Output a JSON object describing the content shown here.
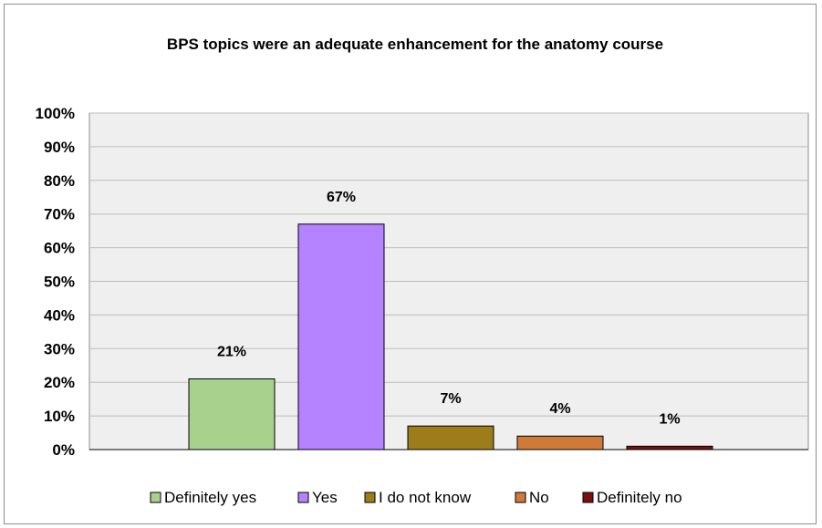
{
  "chart_data": {
    "type": "bar",
    "title": "BPS topics were an adequate enhancement for the anatomy course",
    "xlabel": "",
    "ylabel": "",
    "ylim": [
      0,
      100
    ],
    "yticks": [
      "0%",
      "10%",
      "20%",
      "30%",
      "40%",
      "50%",
      "60%",
      "70%",
      "80%",
      "90%",
      "100%"
    ],
    "grid": true,
    "legend_position": "bottom",
    "categories": [
      "Definitely yes",
      "Yes",
      "I do not know",
      "No",
      "Definitely no"
    ],
    "values": [
      21,
      67,
      7,
      4,
      1
    ],
    "data_labels": [
      "21%",
      "67%",
      "7%",
      "4%",
      "1%"
    ],
    "colors": [
      "#a9d18e",
      "#b583ff",
      "#9c7d1a",
      "#d07a3a",
      "#7a1010"
    ],
    "plot_background": "#efefef",
    "grid_color": "#bdbdbd"
  }
}
